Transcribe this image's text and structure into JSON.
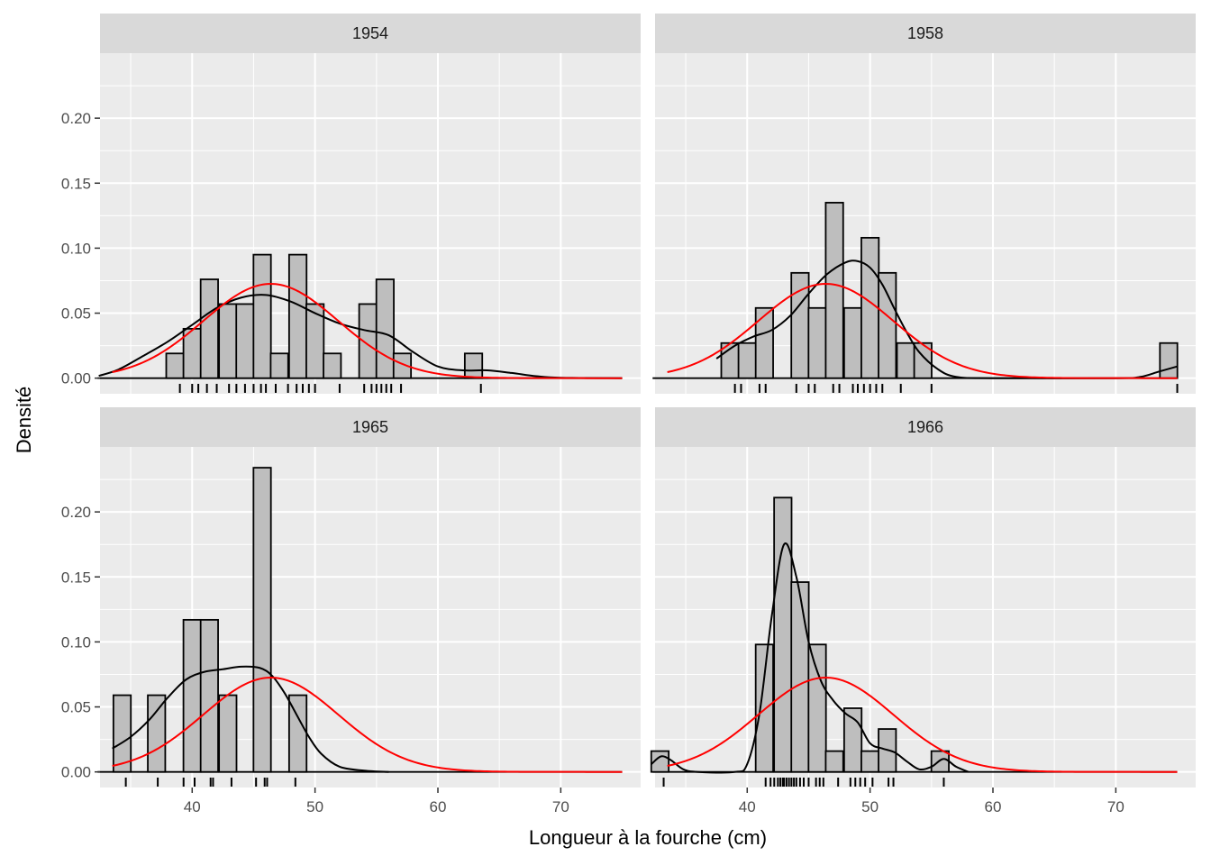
{
  "chart_data": {
    "type": "histogram-facets",
    "xlabel": "Longueur à la fourche (cm)",
    "ylabel": "Densité",
    "xlim": [
      32.5,
      76.5
    ],
    "ylim": [
      -0.012,
      0.25
    ],
    "x_ticks": [
      40,
      50,
      60,
      70
    ],
    "y_ticks": [
      0.0,
      0.05,
      0.1,
      0.15,
      0.2
    ],
    "y_tick_labels": [
      "0.00",
      "0.05",
      "0.10",
      "0.15",
      "0.20"
    ],
    "bin_width": 1.42,
    "overall_normal": {
      "mean": 46.4,
      "sd": 5.5,
      "xmin": 33.5,
      "xmax": 75.0
    },
    "colors": {
      "panel_bg": "#ebebeb",
      "strip_bg": "#d9d9d9",
      "grid": "#ffffff",
      "bar_fill": "#bebebe",
      "bar_outline": "#000000",
      "density_line": "#000000",
      "normal_line": "#ff0000"
    },
    "facets": [
      {
        "label": "1954",
        "bins": [
          {
            "x": 38.6,
            "y": 0.019
          },
          {
            "x": 40.0,
            "y": 0.038
          },
          {
            "x": 41.4,
            "y": 0.076
          },
          {
            "x": 42.9,
            "y": 0.057
          },
          {
            "x": 44.3,
            "y": 0.057
          },
          {
            "x": 45.7,
            "y": 0.095
          },
          {
            "x": 47.1,
            "y": 0.019
          },
          {
            "x": 48.6,
            "y": 0.095
          },
          {
            "x": 50.0,
            "y": 0.057
          },
          {
            "x": 51.4,
            "y": 0.019
          },
          {
            "x": 54.3,
            "y": 0.057
          },
          {
            "x": 55.7,
            "y": 0.076
          },
          {
            "x": 57.1,
            "y": 0.019
          },
          {
            "x": 62.9,
            "y": 0.019
          }
        ],
        "rug": [
          39.0,
          40.0,
          40.5,
          41.2,
          42.0,
          43.0,
          43.6,
          44.3,
          45.0,
          45.6,
          46.0,
          46.8,
          47.8,
          48.5,
          49.0,
          49.5,
          50.0,
          52.0,
          54.0,
          54.6,
          55.0,
          55.4,
          55.8,
          56.2,
          57.0,
          63.5
        ],
        "density": [
          [
            32.4,
            0.0018
          ],
          [
            34.0,
            0.0066
          ],
          [
            36.0,
            0.017
          ],
          [
            38.0,
            0.028
          ],
          [
            40.0,
            0.041
          ],
          [
            42.0,
            0.054
          ],
          [
            44.0,
            0.062
          ],
          [
            46.0,
            0.064
          ],
          [
            48.0,
            0.059
          ],
          [
            50.0,
            0.05
          ],
          [
            52.0,
            0.042
          ],
          [
            54.0,
            0.037
          ],
          [
            56.0,
            0.033
          ],
          [
            58.0,
            0.02
          ],
          [
            60.0,
            0.009
          ],
          [
            62.0,
            0.006
          ],
          [
            64.0,
            0.006
          ],
          [
            66.0,
            0.004
          ],
          [
            68.0,
            0.0015
          ],
          [
            70.0,
            0.0003
          ],
          [
            75.0,
            0.0
          ]
        ]
      },
      {
        "label": "1958",
        "bins": [
          {
            "x": 38.6,
            "y": 0.027
          },
          {
            "x": 40.0,
            "y": 0.027
          },
          {
            "x": 41.4,
            "y": 0.054
          },
          {
            "x": 44.3,
            "y": 0.081
          },
          {
            "x": 45.7,
            "y": 0.054
          },
          {
            "x": 47.1,
            "y": 0.135
          },
          {
            "x": 48.6,
            "y": 0.054
          },
          {
            "x": 50.0,
            "y": 0.108
          },
          {
            "x": 51.4,
            "y": 0.081
          },
          {
            "x": 52.9,
            "y": 0.027
          },
          {
            "x": 54.3,
            "y": 0.027
          },
          {
            "x": 74.3,
            "y": 0.027
          }
        ],
        "rug": [
          39.0,
          39.5,
          41.0,
          41.5,
          44.0,
          45.0,
          45.5,
          47.0,
          47.5,
          48.6,
          49.0,
          49.5,
          50.0,
          50.5,
          51.0,
          52.5,
          55.0,
          75.0
        ],
        "density": [
          [
            37.5,
            0.015
          ],
          [
            39.0,
            0.025
          ],
          [
            40.5,
            0.032
          ],
          [
            42.0,
            0.037
          ],
          [
            43.5,
            0.048
          ],
          [
            45.0,
            0.065
          ],
          [
            46.5,
            0.08
          ],
          [
            48.0,
            0.089
          ],
          [
            49.0,
            0.09
          ],
          [
            50.0,
            0.085
          ],
          [
            51.0,
            0.072
          ],
          [
            52.0,
            0.053
          ],
          [
            53.0,
            0.035
          ],
          [
            54.0,
            0.02
          ],
          [
            55.5,
            0.007
          ],
          [
            57.0,
            0.001
          ],
          [
            60.0,
            0.0
          ],
          [
            70.0,
            0.0
          ],
          [
            72.0,
            0.001
          ],
          [
            73.5,
            0.005
          ],
          [
            75.0,
            0.009
          ]
        ]
      },
      {
        "label": "1965",
        "bins": [
          {
            "x": 34.3,
            "y": 0.059
          },
          {
            "x": 37.1,
            "y": 0.059
          },
          {
            "x": 40.0,
            "y": 0.117
          },
          {
            "x": 41.4,
            "y": 0.117
          },
          {
            "x": 42.9,
            "y": 0.059
          },
          {
            "x": 45.7,
            "y": 0.234
          },
          {
            "x": 48.6,
            "y": 0.059
          }
        ],
        "rug": [
          34.6,
          37.2,
          39.3,
          40.2,
          41.5,
          41.7,
          43.2,
          45.2,
          45.9,
          46.1,
          48.4
        ],
        "density": [
          [
            33.5,
            0.018
          ],
          [
            35.0,
            0.027
          ],
          [
            36.5,
            0.04
          ],
          [
            38.0,
            0.057
          ],
          [
            39.5,
            0.071
          ],
          [
            41.0,
            0.077
          ],
          [
            42.5,
            0.079
          ],
          [
            44.0,
            0.081
          ],
          [
            45.5,
            0.08
          ],
          [
            46.5,
            0.074
          ],
          [
            47.5,
            0.061
          ],
          [
            48.5,
            0.044
          ],
          [
            49.5,
            0.027
          ],
          [
            50.5,
            0.014
          ],
          [
            52.0,
            0.004
          ],
          [
            54.0,
            0.001
          ],
          [
            56.0,
            0.0
          ]
        ]
      },
      {
        "label": "1966",
        "bins": [
          {
            "x": 32.9,
            "y": 0.016
          },
          {
            "x": 41.4,
            "y": 0.098
          },
          {
            "x": 42.9,
            "y": 0.211
          },
          {
            "x": 44.3,
            "y": 0.146
          },
          {
            "x": 45.7,
            "y": 0.098
          },
          {
            "x": 47.1,
            "y": 0.016
          },
          {
            "x": 48.6,
            "y": 0.049
          },
          {
            "x": 50.0,
            "y": 0.016
          },
          {
            "x": 51.4,
            "y": 0.033
          },
          {
            "x": 55.7,
            "y": 0.016
          }
        ],
        "rug": [
          33.2,
          41.5,
          41.9,
          42.2,
          42.5,
          42.7,
          42.9,
          43.0,
          43.2,
          43.4,
          43.6,
          43.8,
          44.0,
          44.3,
          44.6,
          45.0,
          45.6,
          45.9,
          46.2,
          47.4,
          48.4,
          48.8,
          49.2,
          49.6,
          50.2,
          51.5,
          51.9,
          56.0
        ],
        "density": [
          [
            32.2,
            0.006
          ],
          [
            33.0,
            0.012
          ],
          [
            33.8,
            0.009
          ],
          [
            34.8,
            0.002
          ],
          [
            36.0,
            0.0
          ],
          [
            39.0,
            0.0
          ],
          [
            40.0,
            0.006
          ],
          [
            41.0,
            0.045
          ],
          [
            42.0,
            0.12
          ],
          [
            43.0,
            0.175
          ],
          [
            44.0,
            0.15
          ],
          [
            45.0,
            0.1
          ],
          [
            46.0,
            0.07
          ],
          [
            47.0,
            0.055
          ],
          [
            48.0,
            0.045
          ],
          [
            49.0,
            0.038
          ],
          [
            50.0,
            0.022
          ],
          [
            51.0,
            0.018
          ],
          [
            52.0,
            0.015
          ],
          [
            53.0,
            0.008
          ],
          [
            54.0,
            0.002
          ],
          [
            55.0,
            0.004
          ],
          [
            56.0,
            0.01
          ],
          [
            57.0,
            0.004
          ],
          [
            58.0,
            0.0
          ]
        ]
      }
    ]
  }
}
